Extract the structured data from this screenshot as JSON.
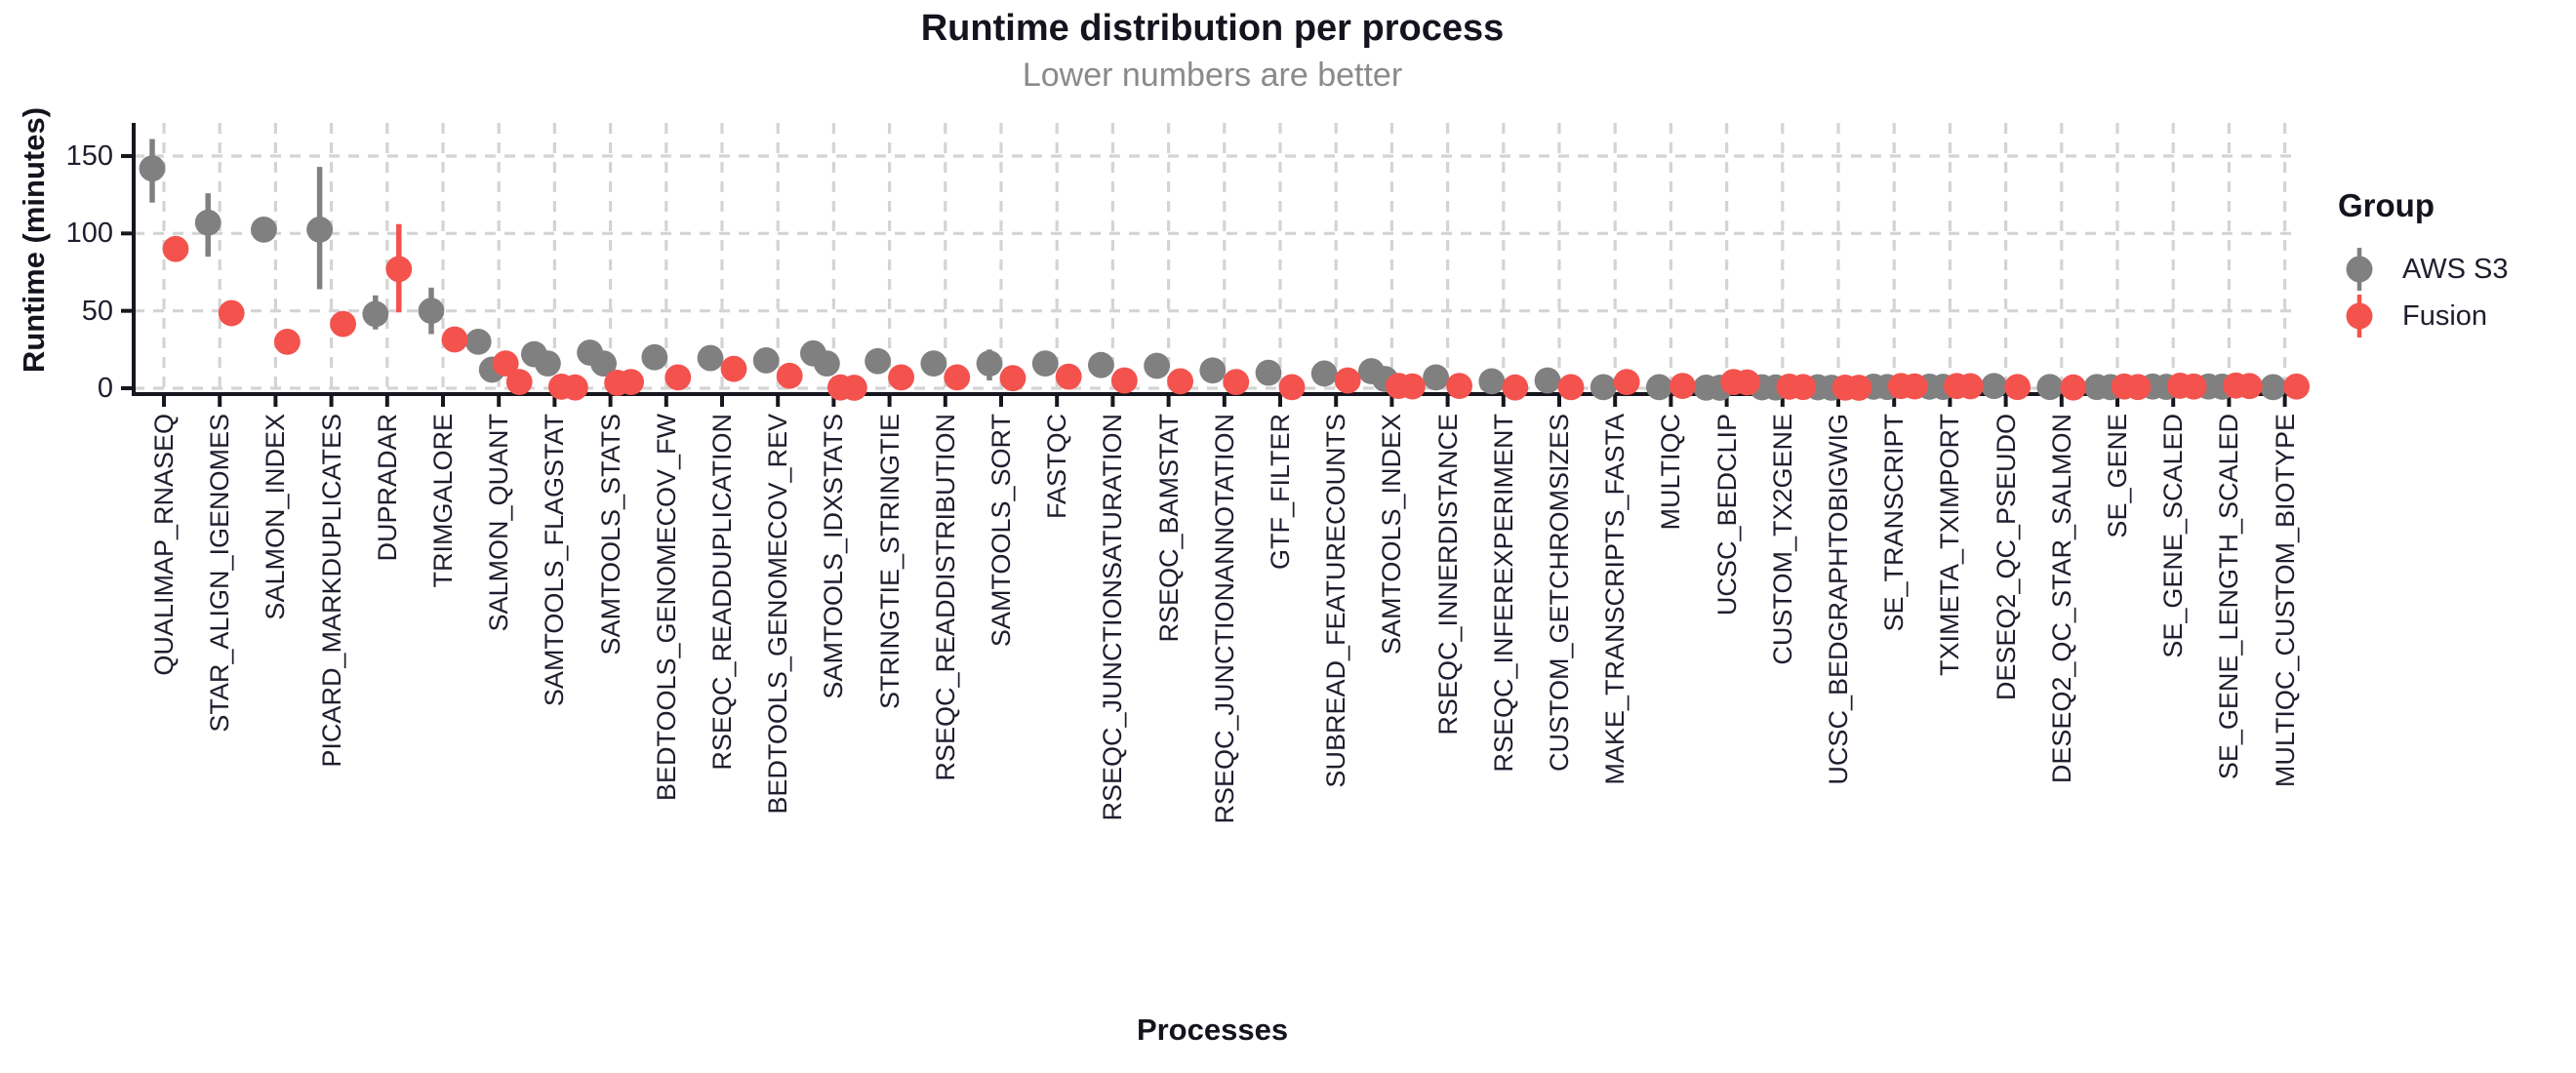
{
  "colors": {
    "aws_s3": "#808080",
    "fusion": "#F4524D",
    "title_text": "#14141F",
    "subtitle_text": "#8A8A8A",
    "axis_text": "#1E1E2E",
    "axis_line": "#16161E",
    "gridline": "#D4D4D4",
    "background": "#FFFFFF"
  },
  "chart_data": {
    "type": "scatter",
    "style": "dodged pointrange (dot plot with error bars), dashed grid both axes, classic left/bottom spines",
    "title": "Runtime distribution per process",
    "subtitle": "Lower numbers are better",
    "xlabel": "Processes",
    "ylabel": "Runtime (minutes)",
    "y_unit": "minutes",
    "y_ticks": [
      0,
      50,
      100,
      150
    ],
    "ylim": [
      -4,
      171
    ],
    "x_tick_rotation_degrees": 90,
    "legend": {
      "title": "Group",
      "position": "right",
      "entries": [
        {
          "label": "AWS S3",
          "color": "#808080",
          "glyph": "pointrange"
        },
        {
          "label": "Fusion",
          "color": "#F4524D",
          "glyph": "pointrange"
        }
      ]
    },
    "processes": [
      {
        "name": "QUALIMAP_RNASEQ",
        "aws": {
          "values": [
            142
          ],
          "range": [
            120,
            161
          ]
        },
        "fusion": {
          "values": [
            90
          ],
          "range": [
            83,
            96
          ]
        }
      },
      {
        "name": "STAR_ALIGN_IGENOMES",
        "aws": {
          "values": [
            107
          ],
          "range": [
            85,
            126
          ]
        },
        "fusion": {
          "values": [
            48.5
          ]
        }
      },
      {
        "name": "SALMON_INDEX",
        "aws": {
          "values": [
            102.5
          ]
        },
        "fusion": {
          "values": [
            30
          ]
        }
      },
      {
        "name": "PICARD_MARKDUPLICATES",
        "aws": {
          "values": [
            102.5
          ],
          "range": [
            64,
            143
          ]
        },
        "fusion": {
          "values": [
            41.5
          ]
        }
      },
      {
        "name": "DUPRADAR",
        "aws": {
          "values": [
            48
          ],
          "range": [
            38,
            60
          ]
        },
        "fusion": {
          "values": [
            77
          ],
          "range": [
            49,
            106
          ]
        }
      },
      {
        "name": "TRIMGALORE",
        "aws": {
          "values": [
            50
          ],
          "range": [
            35,
            65
          ]
        },
        "fusion": {
          "values": [
            31.5
          ]
        }
      },
      {
        "name": "SALMON_QUANT",
        "aws": {
          "values": [
            30,
            12
          ]
        },
        "fusion": {
          "values": [
            16,
            4
          ]
        }
      },
      {
        "name": "SAMTOOLS_FLAGSTAT",
        "aws": {
          "values": [
            22,
            16
          ]
        },
        "fusion": {
          "values": [
            1,
            0.5
          ]
        }
      },
      {
        "name": "SAMTOOLS_STATS",
        "aws": {
          "values": [
            23,
            16
          ]
        },
        "fusion": {
          "values": [
            3.5,
            4
          ]
        }
      },
      {
        "name": "BEDTOOLS_GENOMECOV_FW",
        "aws": {
          "values": [
            20
          ]
        },
        "fusion": {
          "values": [
            7
          ]
        }
      },
      {
        "name": "RSEQC_READDUPLICATION",
        "aws": {
          "values": [
            19.5
          ]
        },
        "fusion": {
          "values": [
            12.5
          ]
        }
      },
      {
        "name": "BEDTOOLS_GENOMECOV_REV",
        "aws": {
          "values": [
            18
          ]
        },
        "fusion": {
          "values": [
            8
          ]
        }
      },
      {
        "name": "SAMTOOLS_IDXSTATS",
        "aws": {
          "values": [
            22.5,
            16
          ]
        },
        "fusion": {
          "values": [
            0.5,
            0.3
          ]
        }
      },
      {
        "name": "STRINGTIE_STRINGTIE",
        "aws": {
          "values": [
            17.5
          ]
        },
        "fusion": {
          "values": [
            7
          ]
        }
      },
      {
        "name": "RSEQC_READDISTRIBUTION",
        "aws": {
          "values": [
            16
          ]
        },
        "fusion": {
          "values": [
            7
          ]
        }
      },
      {
        "name": "SAMTOOLS_SORT",
        "aws": {
          "values": [
            16
          ],
          "range": [
            5,
            25
          ]
        },
        "fusion": {
          "values": [
            6.5
          ]
        }
      },
      {
        "name": "FASTQC",
        "aws": {
          "values": [
            16
          ]
        },
        "fusion": {
          "values": [
            7.5
          ]
        }
      },
      {
        "name": "RSEQC_JUNCTIONSATURATION",
        "aws": {
          "values": [
            15
          ]
        },
        "fusion": {
          "values": [
            5
          ]
        }
      },
      {
        "name": "RSEQC_BAMSTAT",
        "aws": {
          "values": [
            14.5
          ]
        },
        "fusion": {
          "values": [
            4.5
          ]
        }
      },
      {
        "name": "RSEQC_JUNCTIONANNOTATION",
        "aws": {
          "values": [
            11.5
          ]
        },
        "fusion": {
          "values": [
            4
          ]
        }
      },
      {
        "name": "GTF_FILTER",
        "aws": {
          "values": [
            10
          ]
        },
        "fusion": {
          "values": [
            0.7
          ]
        }
      },
      {
        "name": "SUBREAD_FEATURECOUNTS",
        "aws": {
          "values": [
            9.5
          ]
        },
        "fusion": {
          "values": [
            5
          ]
        }
      },
      {
        "name": "SAMTOOLS_INDEX",
        "aws": {
          "values": [
            11,
            6
          ]
        },
        "fusion": {
          "values": [
            1.5,
            1.2
          ]
        }
      },
      {
        "name": "RSEQC_INNERDISTANCE",
        "aws": {
          "values": [
            7
          ]
        },
        "fusion": {
          "values": [
            1.5
          ]
        }
      },
      {
        "name": "RSEQC_INFEREXPERIMENT",
        "aws": {
          "values": [
            4.5
          ]
        },
        "fusion": {
          "values": [
            0.5
          ]
        }
      },
      {
        "name": "CUSTOM_GETCHROMSIZES",
        "aws": {
          "values": [
            5
          ]
        },
        "fusion": {
          "values": [
            0.7
          ]
        }
      },
      {
        "name": "MAKE_TRANSCRIPTS_FASTA",
        "aws": {
          "values": [
            0.7
          ]
        },
        "fusion": {
          "values": [
            4
          ]
        }
      },
      {
        "name": "MULTIQC",
        "aws": {
          "values": [
            0.7
          ]
        },
        "fusion": {
          "values": [
            1.5
          ]
        }
      },
      {
        "name": "UCSC_BEDCLIP",
        "aws": {
          "values": [
            0.4,
            0.3
          ]
        },
        "fusion": {
          "values": [
            4,
            3.8
          ]
        }
      },
      {
        "name": "CUSTOM_TX2GENE",
        "aws": {
          "values": [
            0.6,
            0.5
          ]
        },
        "fusion": {
          "values": [
            1,
            0.8
          ]
        }
      },
      {
        "name": "UCSC_BEDGRAPHTOBIGWIG",
        "aws": {
          "values": [
            0.6,
            0.3
          ]
        },
        "fusion": {
          "values": [
            0.4,
            0.3
          ]
        }
      },
      {
        "name": "SE_TRANSCRIPT",
        "aws": {
          "values": [
            1,
            0.8
          ]
        },
        "fusion": {
          "values": [
            1.4,
            1.2
          ]
        }
      },
      {
        "name": "TXIMETA_TXIMPORT",
        "aws": {
          "values": [
            1,
            0.9
          ]
        },
        "fusion": {
          "values": [
            1.4,
            1.3
          ]
        }
      },
      {
        "name": "DESEQ2_QC_PSEUDO",
        "aws": {
          "values": [
            1.4
          ]
        },
        "fusion": {
          "values": [
            0.8
          ]
        }
      },
      {
        "name": "DESEQ2_QC_STAR_SALMON",
        "aws": {
          "values": [
            0.8
          ]
        },
        "fusion": {
          "values": [
            0.5
          ]
        }
      },
      {
        "name": "SE_GENE",
        "aws": {
          "values": [
            0.8,
            0.7
          ]
        },
        "fusion": {
          "values": [
            1.1,
            0.8
          ]
        }
      },
      {
        "name": "SE_GENE_SCALED",
        "aws": {
          "values": [
            1.1,
            0.9
          ]
        },
        "fusion": {
          "values": [
            1.6,
            1.1
          ]
        }
      },
      {
        "name": "SE_GENE_LENGTH_SCALED",
        "aws": {
          "values": [
            1.1,
            1
          ]
        },
        "fusion": {
          "values": [
            1.7,
            1.4
          ]
        }
      },
      {
        "name": "MULTIQC_CUSTOM_BIOTYPE",
        "aws": {
          "values": [
            0.7
          ]
        },
        "fusion": {
          "values": [
            1.1
          ]
        }
      }
    ]
  }
}
